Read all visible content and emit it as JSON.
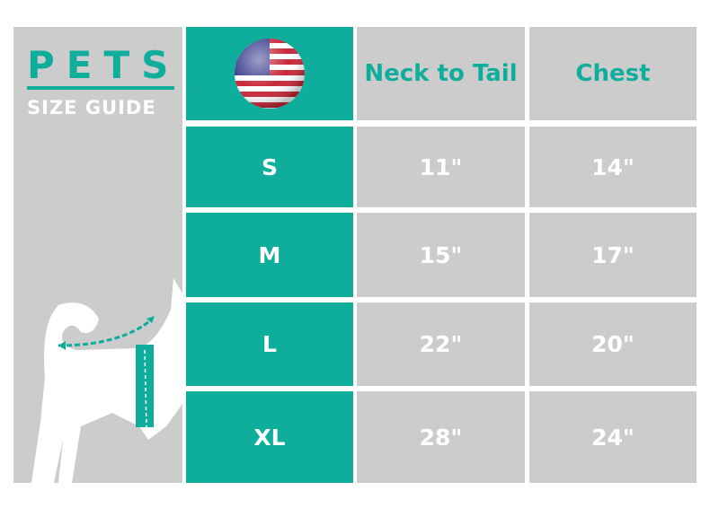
{
  "brand": {
    "title": "PETS",
    "subtitle": "SIZE GUIDE"
  },
  "colors": {
    "accent": "#0fae9c",
    "panel": "#cccccd"
  },
  "header": {
    "flag_icon": "us-flag-icon",
    "columns": [
      "Neck to Tail",
      "Chest"
    ]
  },
  "rows": [
    {
      "size": "S",
      "neck_to_tail": "11\"",
      "chest": "14\""
    },
    {
      "size": "M",
      "neck_to_tail": "15\"",
      "chest": "17\""
    },
    {
      "size": "L",
      "neck_to_tail": "22\"",
      "chest": "20\""
    },
    {
      "size": "XL",
      "neck_to_tail": "28\"",
      "chest": "24\""
    }
  ]
}
